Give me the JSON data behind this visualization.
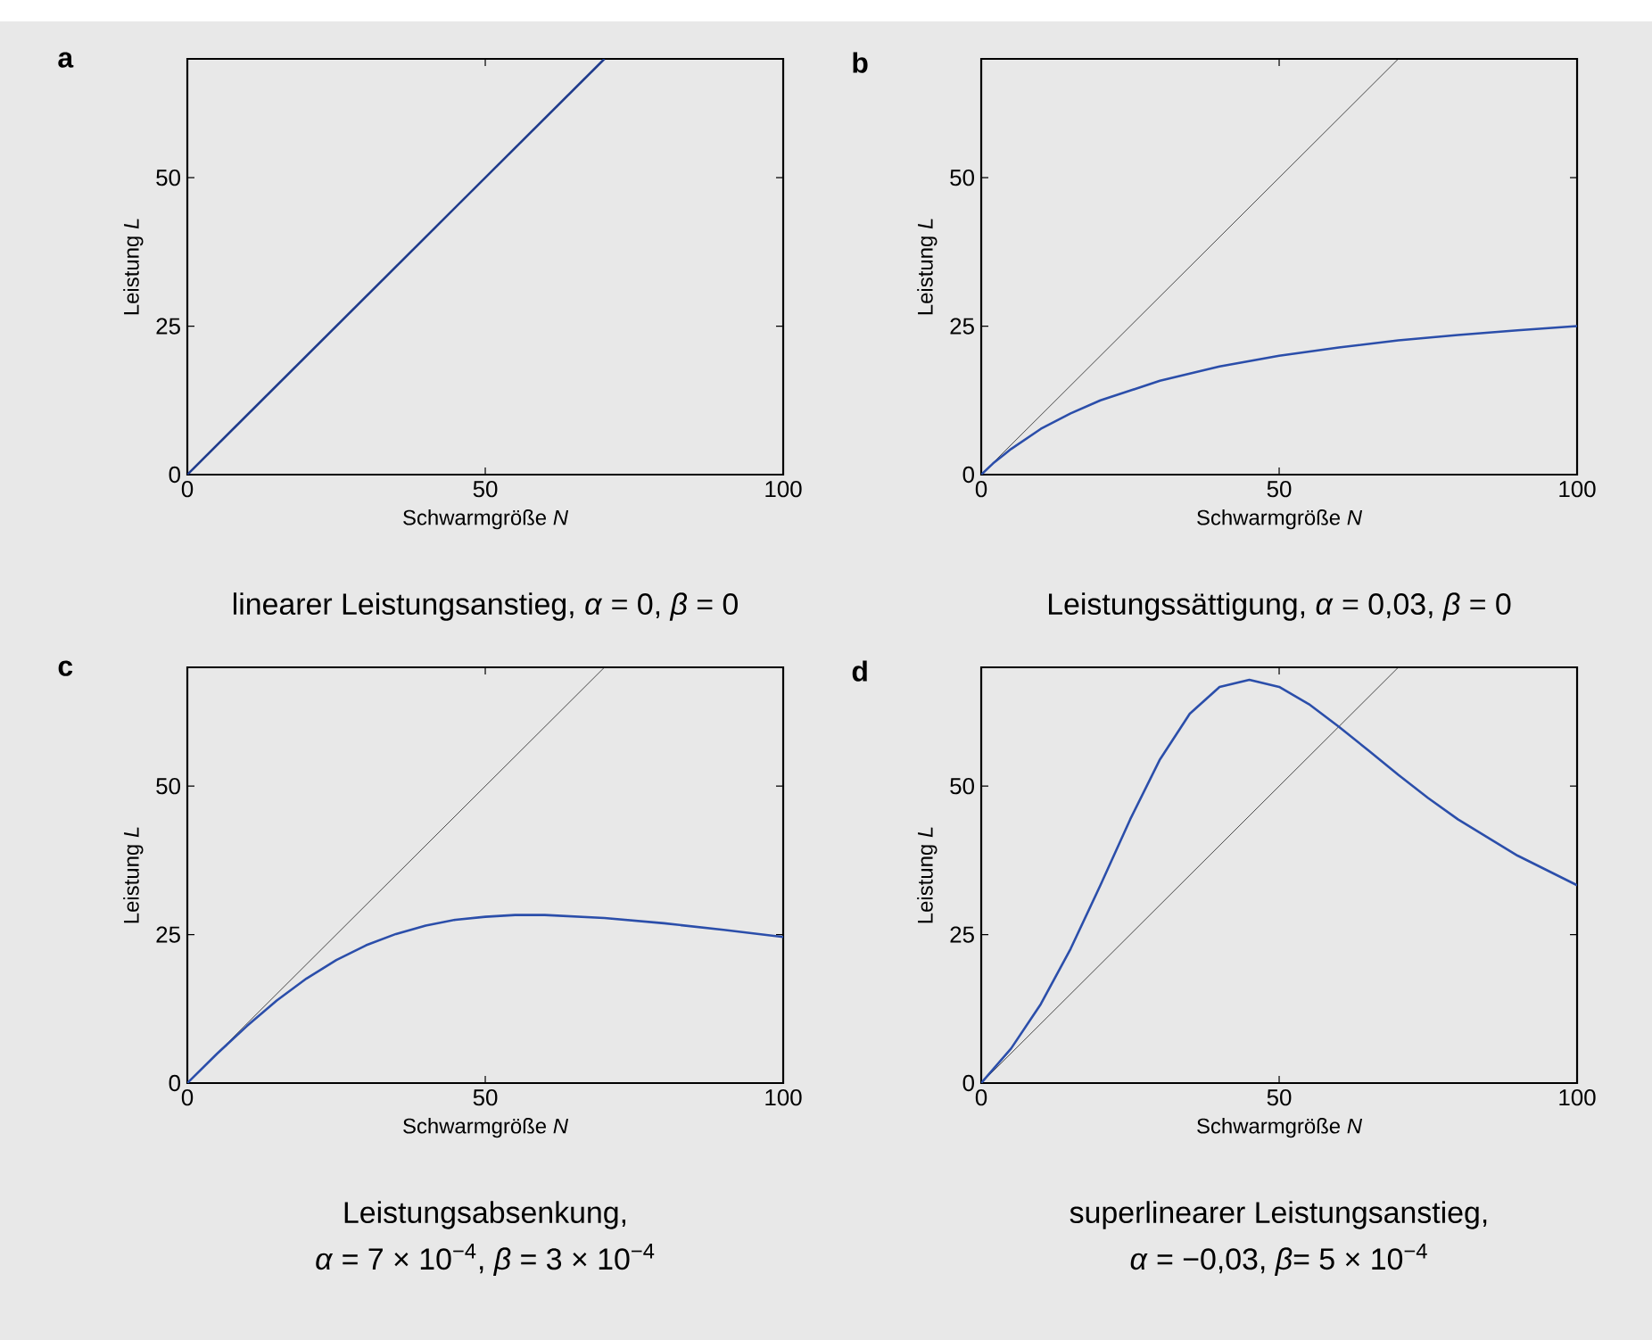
{
  "chart_data": [
    {
      "type": "line",
      "title": "a",
      "xlabel": "Schwarmgröße *N*",
      "ylabel": "Leistung *L*",
      "subtitle": "linearer Leistungsanstieg, *α* = 0, *β* = 0",
      "xlim": [
        0,
        100
      ],
      "ylim": [
        0,
        70
      ],
      "xticks": [
        0,
        50,
        100
      ],
      "yticks": [
        0,
        25,
        50
      ],
      "series": [
        {
          "color": "#1f3b8c",
          "x": [
            0,
            70
          ],
          "values": [
            0,
            70
          ]
        }
      ]
    },
    {
      "type": "line",
      "title": "b",
      "xlabel": "Schwarmgröße *N*",
      "ylabel": "Leistung *L*",
      "subtitle": "Leistungssättigung, *α* = 0,03, *β* = 0",
      "xlim": [
        0,
        100
      ],
      "ylim": [
        0,
        70
      ],
      "xticks": [
        0,
        50,
        100
      ],
      "yticks": [
        0,
        25,
        50
      ],
      "series": [
        {
          "color": "#000000",
          "x": [
            0,
            70
          ],
          "values": [
            0,
            70
          ]
        },
        {
          "color": "#2b4eaa",
          "x": [
            0,
            2,
            5,
            10,
            15,
            20,
            30,
            40,
            50,
            60,
            70,
            80,
            90,
            100
          ],
          "values": [
            0,
            1.9,
            4.3,
            7.7,
            10.3,
            12.5,
            15.8,
            18.2,
            20,
            21.4,
            22.6,
            23.5,
            24.3,
            25
          ]
        }
      ]
    },
    {
      "type": "line",
      "title": "c",
      "xlabel": "Schwarmgröße *N*",
      "ylabel": "Leistung *L*",
      "subtitle": "Leistungsabsenkung,",
      "annotations": [
        "*α* = 7 × 10$^{−4}$, *β* = 3 × 10$^{−4}$"
      ],
      "xlim": [
        0,
        100
      ],
      "ylim": [
        0,
        70
      ],
      "xticks": [
        0,
        50,
        100
      ],
      "yticks": [
        0,
        25,
        50
      ],
      "series": [
        {
          "color": "#000000",
          "x": [
            0,
            70
          ],
          "values": [
            0,
            70
          ]
        },
        {
          "color": "#2b4eaa",
          "x": [
            0,
            5,
            10,
            15,
            20,
            25,
            30,
            35,
            40,
            45,
            50,
            55,
            60,
            70,
            80,
            90,
            100
          ],
          "values": [
            0,
            4.95,
            9.6,
            13.9,
            17.6,
            20.7,
            23.2,
            25.1,
            26.5,
            27.5,
            28,
            28.3,
            28.3,
            27.8,
            26.9,
            25.8,
            24.6
          ]
        }
      ]
    },
    {
      "type": "line",
      "title": "d",
      "xlabel": "Schwarmgröße *N*",
      "ylabel": "Leistung *L*",
      "subtitle": "superlinearer Leistungsanstieg,",
      "annotations": [
        "*α* = −0,03, *β*= 5 × 10$^{−4}$"
      ],
      "xlim": [
        0,
        100
      ],
      "ylim": [
        0,
        70
      ],
      "xticks": [
        0,
        50,
        100
      ],
      "yticks": [
        0,
        25,
        50
      ],
      "series": [
        {
          "color": "#000000",
          "x": [
            0,
            70
          ],
          "values": [
            0,
            70
          ]
        },
        {
          "color": "#2b4eaa",
          "x": [
            0,
            5,
            10,
            15,
            20,
            25,
            30,
            35,
            40,
            45,
            50,
            55,
            60,
            65,
            70,
            75,
            80,
            90,
            100
          ],
          "values": [
            0,
            5.8,
            13.3,
            22.6,
            33.3,
            44.4,
            54.5,
            62.2,
            66.7,
            67.9,
            66.7,
            63.8,
            60,
            56,
            51.9,
            48,
            44.4,
            38.3,
            33.3
          ]
        }
      ]
    }
  ]
}
